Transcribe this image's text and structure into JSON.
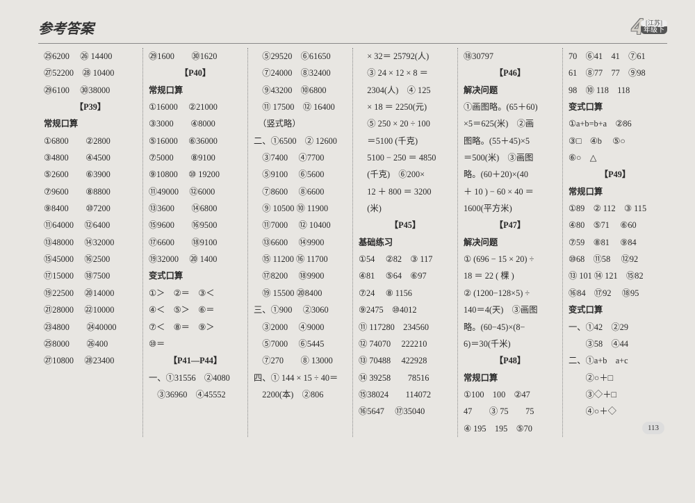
{
  "header": {
    "title": "参考答案",
    "grade_num": "4",
    "grade_top": "[江苏]",
    "grade_bot": "年级下"
  },
  "page_number": "113",
  "col1": [
    "㉕6200　 ㉖ 14400",
    "㉗52200　㉘ 10400",
    "㉙6100　 ㉚38000",
    {
      "sect": "【P39】"
    },
    {
      "sub": "常规口算"
    },
    "①6800　　②2800",
    "③4800　　④4500",
    "⑤2600　　⑥3900",
    "⑦9600　　⑧8800",
    "⑨8400　　⑩7200",
    "⑪64000　 ⑫6400",
    "⑬48000　 ⑭32000",
    "⑮45000　 ⑯2500",
    "⑰15000　 ⑱7500",
    "⑲22500　 ⑳14000",
    "㉑28000　 ㉒10000",
    "㉓4800　　㉔40000",
    "㉕8000　　㉖400",
    "㉗10800　 ㉘23400"
  ],
  "col2": [
    "㉙1600　　㉚1620",
    {
      "sect": "【P40】"
    },
    {
      "sub": "常规口算"
    },
    "①16000　 ②21000",
    "③3000　　④8000",
    "⑤16000　 ⑥36000",
    "⑦5000　　⑧9100",
    "⑨10800　 ⑩ 19200",
    "⑪49000　 ⑫6000",
    "⑬3600　　⑭6800",
    "⑮9600　　⑯9500",
    "⑰6600　　⑱9100",
    "⑲32000　 ⑳ 1400",
    {
      "sub": "变式口算"
    },
    "①＞　②＝　③＜",
    "④＜　⑤＞　⑥＝",
    "⑦＜　⑧＝　⑨＞",
    "⑩＝",
    {
      "sect": "【P41—P44】"
    },
    "一、①31556　②4080",
    "　③36960　④45552"
  ],
  "col3": [
    "　⑤29520　⑥61650",
    "　⑦24000　⑧32400",
    "　⑨43200　⑩6800",
    "　⑪ 17500　⑫ 16400",
    "　（竖式略）",
    "二、①6500　② 12600",
    "　③7400　 ④7700",
    "　⑤9100　 ⑥5600",
    "　⑦8600　 ⑧6600",
    "　⑨ 10500 ⑩ 11900",
    "　⑪7000　 ⑫ 10400",
    "　⑬6600　 ⑭9900",
    "　⑮ 11200 ⑯ 11700",
    "　⑰8200　 ⑱9900",
    "　⑲ 15500 ⑳8400",
    "三、①900　 ②3060",
    "　③2000　 ④9000",
    "　⑤7000　 ⑥5445",
    "　⑦270　　⑧ 13000",
    "四、① 144 × 15 ÷ 40＝",
    "　2200(本)　②806"
  ],
  "col4": [
    "　× 32＝ 25792(人)",
    "　③ 24 × 12 × 8 ＝",
    "　2304(人)　④ 125",
    "　× 18 ＝ 2250(元)",
    "　⑤ 250 × 20 ÷ 100",
    "　＝5100 (千克)",
    "　5100 − 250 ＝ 4850",
    "　(千克)　⑥200×",
    "　12 ＋ 800 ＝ 3200",
    "　(米)",
    {
      "sect": "【P45】"
    },
    {
      "sub": "基础练习"
    },
    "①54　 ②82　③ 117",
    "④81　 ⑤64　⑥97",
    "⑦24　 ⑧ 1156",
    "⑨2475　⑩4012",
    "⑪ 117280　234560",
    "⑫ 74070　 222210",
    "⑬ 70488　 422928",
    "⑭ 39258　　78516",
    "⑮38024　　114072",
    "⑯5647　 ⑰35040"
  ],
  "col5": [
    "⑱30797",
    {
      "sect": "【P46】"
    },
    {
      "sub": "解决问题"
    },
    "①画图略。(65＋60)",
    "×5＝625(米)　②画",
    "图略。(55＋45)×5",
    "＝500(米)　③画图",
    "略。(60＋20)×(40",
    "＋ 10 ) − 60 × 40 ＝",
    "1600(平方米)",
    {
      "sect": "【P47】"
    },
    {
      "sub": "解决问题"
    },
    "① (696 − 15 × 20) ÷",
    "18 ＝ 22 ( 棵 )",
    "② (1200−128×5) ÷",
    "140＝4(天)　③画图",
    "略。(60−45)×(8−",
    "6)＝30(千米)",
    {
      "sect": "【P48】"
    },
    {
      "sub": "常规口算"
    },
    "①100　100　②47",
    "47　　③ 75　　75",
    "④ 195　195　⑤70"
  ],
  "col6": [
    "70　⑥41　41　⑦61",
    "61　⑧77　77　⑨98",
    "98　⑩ 118　118",
    {
      "sub": "变式口算"
    },
    "①a+b=b+a　②86",
    "③□　④b　 ⑤○",
    "⑥○　△",
    {
      "sect": "【P49】"
    },
    {
      "sub": "常规口算"
    },
    "①89　② 112　③ 115",
    "④80　⑤71　 ⑥60",
    "⑦59　⑧81　 ⑨84",
    "⑩68　⑪58　 ⑫92",
    "⑬ 101 ⑭ 121　⑮82",
    "⑯84　⑰92　 ⑱95",
    {
      "sub": "变式口算"
    },
    "一、①42　②29",
    "　　③58　④44",
    "二、①a+b　a+c",
    "　　②○＋□",
    "　　③◇＋□",
    "　　④○＋◇"
  ]
}
